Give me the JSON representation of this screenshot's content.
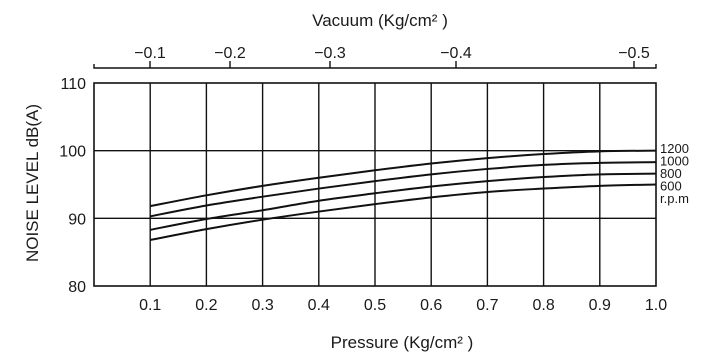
{
  "chart_data": {
    "type": "line",
    "title": "",
    "xlabel": "Pressure (Kg/cm² )",
    "ylabel": "NOISE LEVEL dB(A)",
    "top_axis_label": "Vacuum (Kg/cm² )",
    "xlim": [
      0.0,
      1.0
    ],
    "ylim": [
      80,
      110
    ],
    "x_ticks": [
      "0.1",
      "0.2",
      "0.3",
      "0.4",
      "0.5",
      "0.6",
      "0.7",
      "0.8",
      "0.9",
      "1.0"
    ],
    "x_tick_values": [
      0.1,
      0.2,
      0.3,
      0.4,
      0.5,
      0.6,
      0.7,
      0.8,
      0.9,
      1.0
    ],
    "y_ticks": [
      "80",
      "90",
      "100",
      "110"
    ],
    "y_tick_values": [
      80,
      90,
      100,
      110
    ],
    "top_ticks": [
      "−0.1",
      "−0.2",
      "−0.3",
      "−0.4",
      "−0.5"
    ],
    "top_tick_values": [
      -0.1,
      -0.2,
      -0.3,
      -0.4,
      -0.5
    ],
    "grid": true,
    "legend_placement": "right",
    "rpm_unit_label": "r.p.m",
    "x": [
      0.1,
      0.2,
      0.3,
      0.4,
      0.5,
      0.6,
      0.7,
      0.8,
      0.9,
      1.0
    ],
    "series": [
      {
        "name": "1200",
        "values": [
          91.8,
          93.4,
          94.8,
          96.0,
          97.1,
          98.1,
          98.9,
          99.5,
          99.9,
          100.0
        ]
      },
      {
        "name": "1000",
        "values": [
          90.3,
          91.9,
          93.2,
          94.4,
          95.5,
          96.5,
          97.3,
          97.9,
          98.2,
          98.3
        ]
      },
      {
        "name": "800",
        "values": [
          88.3,
          89.9,
          91.2,
          92.6,
          93.7,
          94.7,
          95.5,
          96.1,
          96.5,
          96.6
        ]
      },
      {
        "name": "600",
        "values": [
          86.8,
          88.4,
          89.8,
          91.0,
          92.1,
          93.1,
          93.9,
          94.4,
          94.8,
          95.0
        ]
      }
    ]
  }
}
